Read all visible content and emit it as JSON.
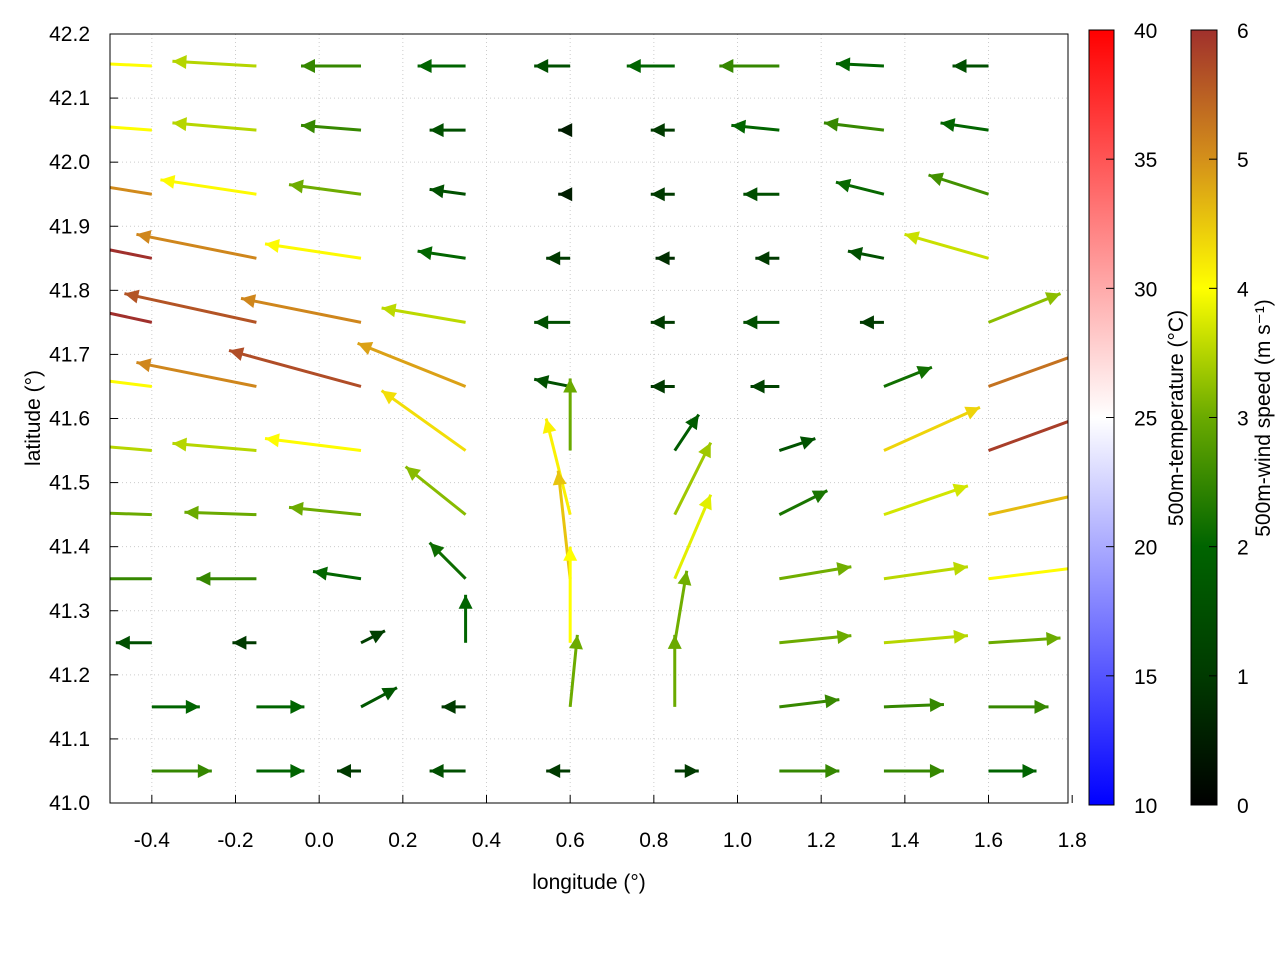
{
  "chart_data": {
    "type": "vector-field",
    "xlabel": "longitude (°)",
    "ylabel": "latitude (°)",
    "xlim": [
      -0.5,
      1.79
    ],
    "ylim": [
      41.0,
      42.2
    ],
    "xticks": [
      "-0.4",
      "-0.2",
      "0.0",
      "0.2",
      "0.4",
      "0.6",
      "0.8",
      "1.0",
      "1.2",
      "1.4",
      "1.6",
      "1.8"
    ],
    "yticks": [
      "41.0",
      "41.1",
      "41.2",
      "41.3",
      "41.4",
      "41.5",
      "41.6",
      "41.7",
      "41.8",
      "41.9",
      "42.0",
      "42.1",
      "42.2"
    ],
    "grid": true,
    "colorbars": [
      {
        "label": "500m-temperature (°C)",
        "range": [
          10,
          40
        ],
        "ticks": [
          "10",
          "15",
          "20",
          "25",
          "30",
          "35",
          "40"
        ],
        "colors": [
          "#0000ff",
          "#ffffff",
          "#ff0000"
        ]
      },
      {
        "label": "500m-wind speed (m s⁻¹)",
        "range": [
          0,
          6
        ],
        "ticks": [
          "0",
          "1",
          "2",
          "3",
          "4",
          "5",
          "6"
        ],
        "colors": [
          "#000000",
          "#003a00",
          "#006400",
          "#6aaa00",
          "#ffff00",
          "#d4901a",
          "#a0302c"
        ]
      }
    ],
    "wind": {
      "units": "m/s",
      "lons": [
        -0.4,
        -0.15,
        0.1,
        0.35,
        0.6,
        0.85,
        1.1,
        1.35,
        1.6
      ],
      "lats": [
        42.15,
        42.05,
        41.95,
        41.85,
        41.75,
        41.65,
        41.55,
        41.45,
        41.35,
        41.25,
        41.15,
        41.05
      ],
      "uv": [
        [
          [
            -4,
            0.2
          ],
          [
            -3.5,
            0.2
          ],
          [
            -2.5,
            0
          ],
          [
            -2,
            0
          ],
          [
            -1.5,
            0
          ],
          [
            -2,
            0
          ],
          [
            -2.5,
            0
          ],
          [
            -2,
            0.1
          ],
          [
            -1.5,
            0
          ]
        ],
        [
          [
            -4,
            0.3
          ],
          [
            -3.5,
            0.3
          ],
          [
            -2.5,
            0.2
          ],
          [
            -1.5,
            0
          ],
          [
            -0.5,
            0
          ],
          [
            -1,
            0
          ],
          [
            -2,
            0.2
          ],
          [
            -2.5,
            0.3
          ],
          [
            -2,
            0.3
          ]
        ],
        [
          [
            -5,
            0.8
          ],
          [
            -4,
            0.6
          ],
          [
            -3,
            0.4
          ],
          [
            -1.5,
            0.2
          ],
          [
            -0.5,
            0
          ],
          [
            -1,
            0
          ],
          [
            -1.5,
            0
          ],
          [
            -2,
            0.5
          ],
          [
            -2.5,
            0.8
          ]
        ],
        [
          [
            -6,
            1.2
          ],
          [
            -5,
            1
          ],
          [
            -4,
            0.6
          ],
          [
            -2,
            0.3
          ],
          [
            -1,
            0
          ],
          [
            -0.8,
            0
          ],
          [
            -1,
            0
          ],
          [
            -1.5,
            0.3
          ],
          [
            -3.5,
            1
          ]
        ],
        [
          [
            -6,
            1.3
          ],
          [
            -5.5,
            1.2
          ],
          [
            -5,
            1
          ],
          [
            -3.5,
            0.6
          ],
          [
            -1.5,
            0
          ],
          [
            -1,
            0
          ],
          [
            -1.5,
            0
          ],
          [
            -1,
            0
          ],
          [
            3,
            1.2
          ]
        ],
        [
          [
            -4,
            0.5
          ],
          [
            -5,
            1
          ],
          [
            -5.5,
            1.5
          ],
          [
            -4.5,
            1.8
          ],
          [
            -1.5,
            0.3
          ],
          [
            -1,
            0
          ],
          [
            -1.2,
            0
          ],
          [
            2,
            0.8
          ],
          [
            5,
            1.8
          ]
        ],
        [
          [
            -3.5,
            0.3
          ],
          [
            -3.5,
            0.3
          ],
          [
            -4,
            0.5
          ],
          [
            -3.5,
            2.5
          ],
          [
            0,
            3
          ],
          [
            1,
            1.5
          ],
          [
            1.5,
            0.5
          ],
          [
            4,
            1.8
          ],
          [
            5.5,
            2
          ]
        ],
        [
          [
            -3,
            0.1
          ],
          [
            -3,
            0.1
          ],
          [
            -3,
            0.3
          ],
          [
            -2.5,
            2
          ],
          [
            -1,
            4
          ],
          [
            1.5,
            3
          ],
          [
            2,
            1
          ],
          [
            3.5,
            1.2
          ],
          [
            4.5,
            1
          ]
        ],
        [
          [
            -2.5,
            0
          ],
          [
            -2.5,
            0
          ],
          [
            -2,
            0.3
          ],
          [
            -1.5,
            1.5
          ],
          [
            -0.5,
            4.5
          ],
          [
            1.5,
            3.5
          ],
          [
            3,
            0.5
          ],
          [
            3.5,
            0.5
          ],
          [
            4,
            0.5
          ]
        ],
        [
          [
            -1.5,
            0
          ],
          [
            -1,
            0
          ],
          [
            1,
            0.5
          ],
          [
            0,
            2
          ],
          [
            0,
            4
          ],
          [
            0.5,
            3
          ],
          [
            3,
            0.3
          ],
          [
            3.5,
            0.3
          ],
          [
            3,
            0.2
          ]
        ],
        [
          [
            2,
            0
          ],
          [
            2,
            0
          ],
          [
            1.5,
            0.8
          ],
          [
            -1,
            0
          ],
          [
            0.3,
            3
          ],
          [
            0,
            3
          ],
          [
            2.5,
            0.3
          ],
          [
            2.5,
            0.1
          ],
          [
            2.5,
            0
          ]
        ],
        [
          [
            2.5,
            0
          ],
          [
            2,
            0
          ],
          [
            -1,
            0
          ],
          [
            -1.5,
            0
          ],
          [
            -1,
            0
          ],
          [
            1,
            0
          ],
          [
            2.5,
            0
          ],
          [
            2.5,
            0
          ],
          [
            2,
            0
          ]
        ]
      ]
    }
  }
}
